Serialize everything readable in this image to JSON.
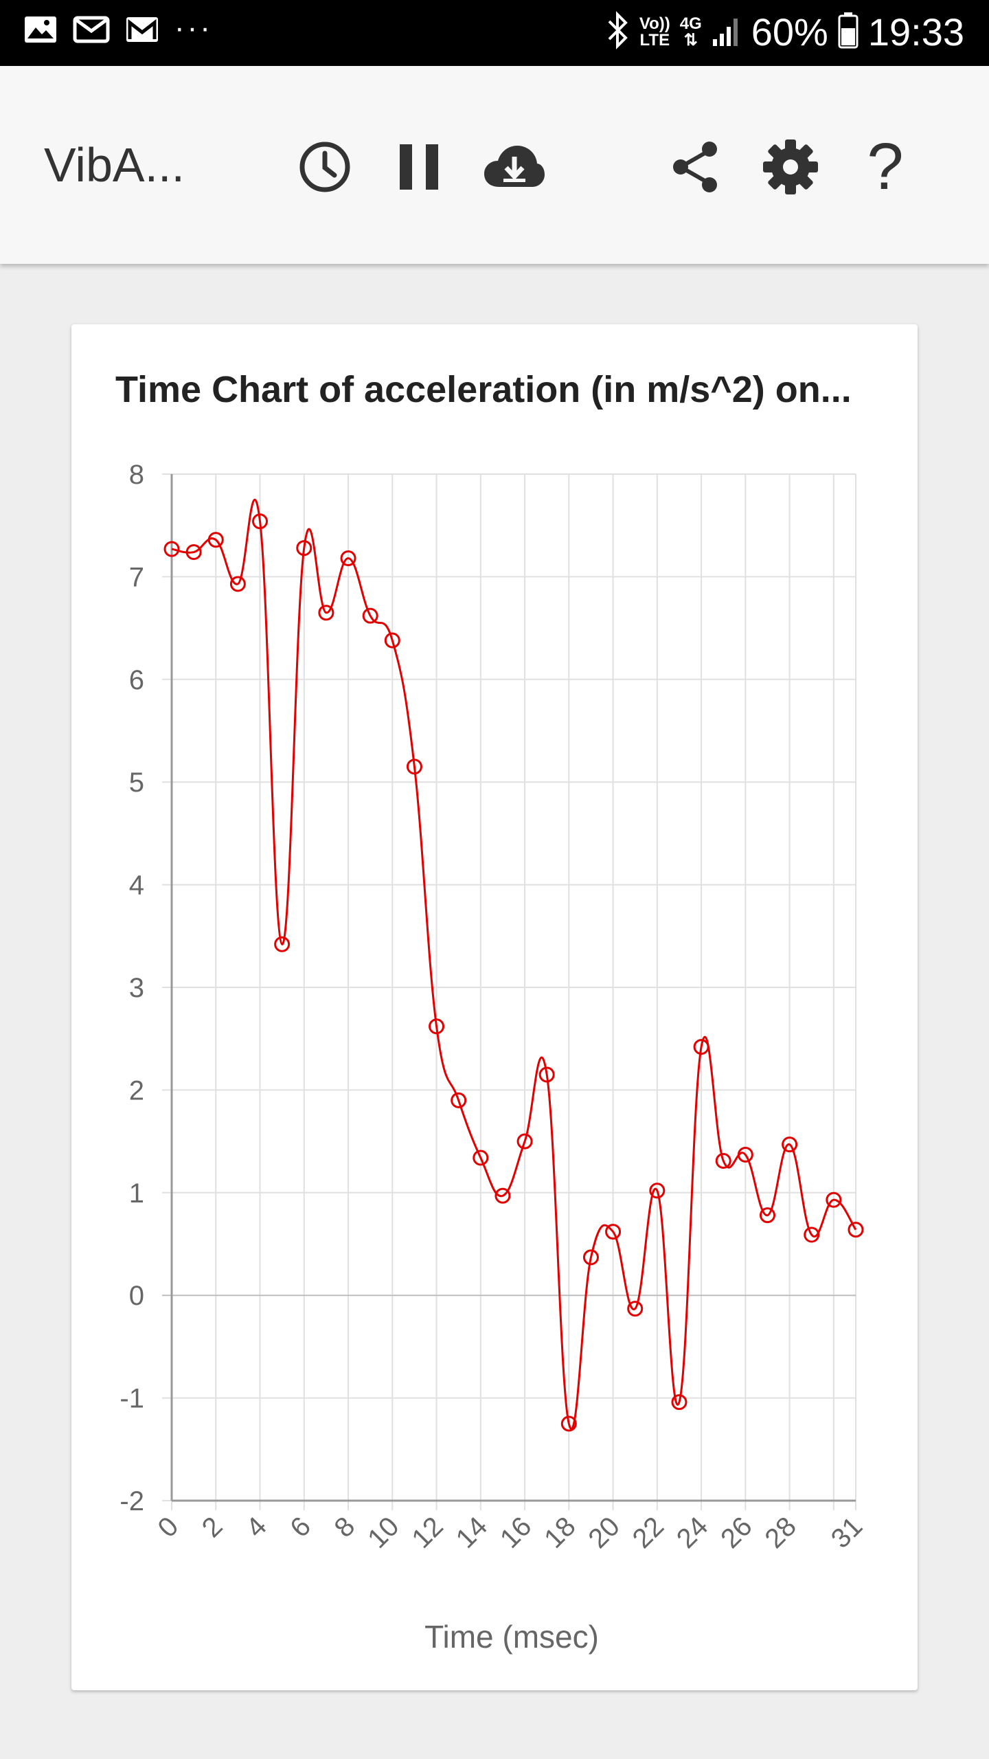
{
  "status_bar": {
    "battery": "60%",
    "time": "19:33",
    "network_top": "Vo))",
    "network_bottom": "LTE",
    "data_label": "4G",
    "overflow": "···",
    "icons": [
      "image-icon",
      "email-icon",
      "gmail-icon",
      "bluetooth-icon",
      "signal-icon",
      "battery-icon"
    ]
  },
  "app_bar": {
    "title": "VibA...",
    "actions": [
      "history-icon",
      "pause-icon",
      "cloud-download-icon",
      "share-icon",
      "settings-icon",
      "help-icon"
    ],
    "help_glyph": "?",
    "icon_color": "#333333"
  },
  "chart_data": {
    "type": "line",
    "title": "Time Chart of acceleration (in m/s^2) on...",
    "xlabel": "Time (msec)",
    "ylabel": "",
    "x": [
      0,
      1,
      2,
      3,
      4,
      5,
      6,
      7,
      8,
      9,
      10,
      11,
      12,
      13,
      14,
      15,
      16,
      17,
      18,
      19,
      20,
      21,
      22,
      23,
      24,
      25,
      26,
      27,
      28,
      29,
      30,
      31
    ],
    "x_tick_labels": [
      "0",
      "2",
      "4",
      "6",
      "8",
      "10",
      "12",
      "14",
      "16",
      "18",
      "20",
      "22",
      "24",
      "26",
      "28",
      "31"
    ],
    "xlim": [
      0,
      31
    ],
    "ylim": [
      -2,
      8
    ],
    "y_ticks": [
      8,
      7,
      6,
      5,
      4,
      3,
      2,
      1,
      0,
      -1,
      -2
    ],
    "series": [
      {
        "color": "#e30000",
        "values": [
          7.27,
          7.24,
          7.36,
          6.93,
          7.54,
          3.42,
          7.28,
          6.65,
          7.18,
          6.62,
          6.38,
          5.15,
          2.62,
          1.9,
          1.34,
          0.97,
          1.5,
          2.15,
          -1.25,
          0.37,
          0.62,
          -0.13,
          1.02,
          -1.04,
          2.42,
          1.31,
          1.37,
          0.78,
          1.47,
          0.59,
          0.93,
          0.64
        ]
      }
    ],
    "grid": true,
    "legend": "none"
  }
}
